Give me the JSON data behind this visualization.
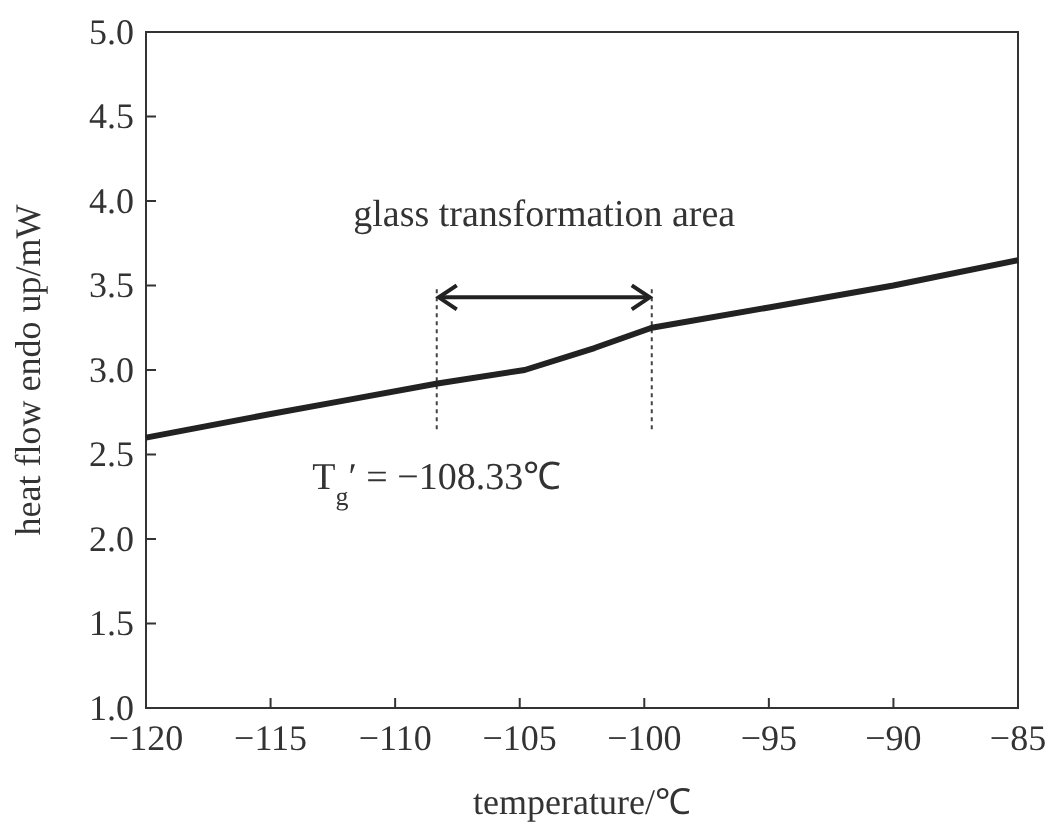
{
  "chart_data": {
    "type": "line",
    "xlabel": "temperature/℃",
    "ylabel": "heat flow endo up/mW",
    "x": [
      -120,
      -115,
      -112,
      -108.3,
      -104.8,
      -102,
      -99.7,
      -95,
      -90,
      -85
    ],
    "series": [
      {
        "color": "#222222",
        "values": [
          2.6,
          2.74,
          2.82,
          2.92,
          3.0,
          3.13,
          3.25,
          3.37,
          3.5,
          3.65
        ]
      }
    ],
    "xlim": [
      -120,
      -85
    ],
    "xticks": [
      -120,
      -115,
      -110,
      -105,
      -100,
      -95,
      -90,
      -85
    ],
    "ylim": [
      1.0,
      5.0
    ],
    "yticks": [
      {
        "value": 1,
        "label": "1.0"
      },
      {
        "value": 1.5,
        "label": "1.5"
      },
      {
        "value": 2,
        "label": "2.0"
      },
      {
        "value": 2.5,
        "label": "2.5"
      },
      {
        "value": 3,
        "label": "3.0"
      },
      {
        "value": 3.5,
        "label": "3.5"
      },
      {
        "value": 4,
        "label": "4.0"
      },
      {
        "value": 4.5,
        "label": "4.5"
      },
      {
        "value": 5,
        "label": "5.0"
      }
    ],
    "ref_lines": [
      {
        "axis": "x",
        "value": -108.33,
        "label": "T$_{g}$′ = −108.33℃",
        "line_style": "dotted",
        "color": "#444444"
      },
      {
        "axis": "x",
        "value": -99.7,
        "line_style": "dotted",
        "color": "#444444"
      }
    ],
    "annotations": [
      "glass transformation area"
    ],
    "grid": false,
    "marker": "none",
    "line_style": "solid"
  }
}
